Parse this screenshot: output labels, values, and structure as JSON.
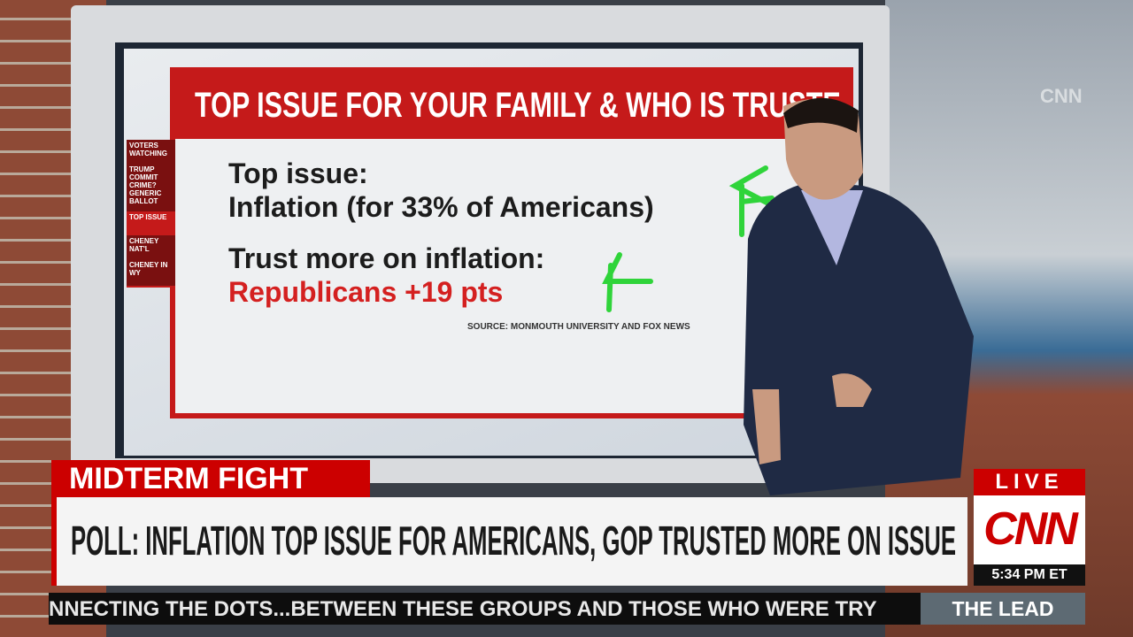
{
  "screen": {
    "title": "TOP ISSUE FOR YOUR FAMILY & WHO IS TRUSTE",
    "sidebar": [
      "VOTERS WATCHING",
      "TRUMP COMMIT CRIME?",
      "GENERIC BALLOT",
      "TOP ISSUE",
      "CHENEY NAT'L",
      "CHENEY IN WY"
    ],
    "lines": [
      "Top issue:",
      "Inflation (for 33% of Americans)",
      "Trust more on inflation:",
      "Republicans +19 pts"
    ],
    "source": "SOURCE: MONMOUTH UNIVERSITY AND FOX NEWS"
  },
  "background_logo": "CNN",
  "chyron": {
    "tag": "MIDTERM FIGHT",
    "headline": "POLL: INFLATION TOP ISSUE FOR AMERICANS, GOP TRUSTED MORE ON ISSUE",
    "live": "LIVE",
    "network": "CNN",
    "time": "5:34 PM ET",
    "ticker": "NNECTING THE DOTS...BETWEEN THESE GROUPS AND THOSE WHO WERE TRY",
    "show": "THE LEAD"
  }
}
